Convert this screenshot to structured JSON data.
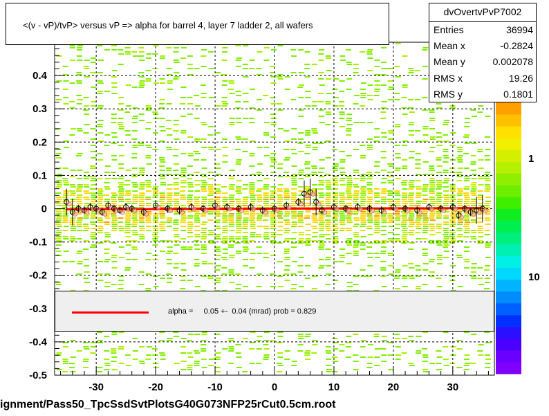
{
  "title": "<(v - vP)/tvP> versus   vP => alpha for barrel 4, layer 7 ladder 2, all wafers",
  "footer": "ignment/Pass50_TpcSsdSvtPlotsG40G073NFP25rCut0.5cm.root",
  "stats": {
    "name": "dvOvertvPvP7002",
    "rows": [
      {
        "key": "Entries",
        "value": "36994"
      },
      {
        "key": "Mean x",
        "value": "-0.2824"
      },
      {
        "key": "Mean y",
        "value": "0.002078"
      },
      {
        "key": "RMS x",
        "value": "19.26"
      },
      {
        "key": "RMS y",
        "value": "0.1801"
      }
    ]
  },
  "legend": {
    "label": "alpha =     0.05 +-  0.04 (mrad) prob = 0.829",
    "line_color": "#ff0000"
  },
  "chart_data": {
    "type": "scatter",
    "title": "<(v - vP)/tvP> versus   vP => alpha for barrel 4, layer 7 ladder 2, all wafers",
    "xlim": [
      -37,
      37
    ],
    "ylim": [
      -0.5,
      0.5
    ],
    "x_ticks": [
      -30,
      -20,
      -10,
      0,
      10,
      20,
      30
    ],
    "x_tick_labels": [
      "-30",
      "-20",
      "-10",
      "0",
      "10",
      "20",
      "30"
    ],
    "y_ticks": [
      -0.5,
      -0.4,
      -0.3,
      -0.2,
      -0.1,
      0,
      0.1,
      0.2,
      0.3,
      0.4
    ],
    "y_tick_labels": [
      "-0.5",
      "-0.4",
      "-0.3",
      "-0.2",
      "-0.1",
      "0",
      "0.1",
      "0.2",
      "0.3",
      "0.4"
    ],
    "grid": true,
    "colorbar_labels": [
      "1",
      "10"
    ],
    "fit_line": {
      "slope_mrad": 0.05,
      "error_mrad": 0.04,
      "intercept": 0.0
    },
    "profile_points": [
      {
        "x": -35,
        "y": 0.02
      },
      {
        "x": -34,
        "y": -0.01
      },
      {
        "x": -33,
        "y": 0.0
      },
      {
        "x": -32,
        "y": -0.005
      },
      {
        "x": -31,
        "y": 0.005
      },
      {
        "x": -30,
        "y": 0.0
      },
      {
        "x": -29,
        "y": -0.01
      },
      {
        "x": -28,
        "y": 0.01
      },
      {
        "x": -27,
        "y": 0.0
      },
      {
        "x": -26,
        "y": -0.005
      },
      {
        "x": -25,
        "y": 0.005
      },
      {
        "x": -24,
        "y": 0.0
      },
      {
        "x": -22,
        "y": -0.01
      },
      {
        "x": -20,
        "y": 0.01
      },
      {
        "x": -18,
        "y": 0.0
      },
      {
        "x": -16,
        "y": -0.005
      },
      {
        "x": -14,
        "y": 0.005
      },
      {
        "x": -12,
        "y": 0.0
      },
      {
        "x": -10,
        "y": 0.01
      },
      {
        "x": -8,
        "y": 0.005
      },
      {
        "x": -6,
        "y": 0.0
      },
      {
        "x": -4,
        "y": 0.005
      },
      {
        "x": -2,
        "y": -0.005
      },
      {
        "x": 0,
        "y": 0.0
      },
      {
        "x": 2,
        "y": 0.01
      },
      {
        "x": 4,
        "y": 0.02
      },
      {
        "x": 5,
        "y": 0.045
      },
      {
        "x": 6,
        "y": 0.05
      },
      {
        "x": 7,
        "y": 0.02
      },
      {
        "x": 8,
        "y": -0.005
      },
      {
        "x": 10,
        "y": 0.005
      },
      {
        "x": 12,
        "y": 0.0
      },
      {
        "x": 14,
        "y": 0.005
      },
      {
        "x": 16,
        "y": 0.0
      },
      {
        "x": 18,
        "y": -0.005
      },
      {
        "x": 20,
        "y": 0.005
      },
      {
        "x": 22,
        "y": 0.0
      },
      {
        "x": 24,
        "y": -0.005
      },
      {
        "x": 26,
        "y": 0.005
      },
      {
        "x": 28,
        "y": 0.0
      },
      {
        "x": 30,
        "y": 0.005
      },
      {
        "x": 31,
        "y": -0.02
      },
      {
        "x": 32,
        "y": 0.0
      },
      {
        "x": 33,
        "y": -0.01
      },
      {
        "x": 34,
        "y": -0.005
      },
      {
        "x": 35,
        "y": 0.0
      }
    ]
  }
}
